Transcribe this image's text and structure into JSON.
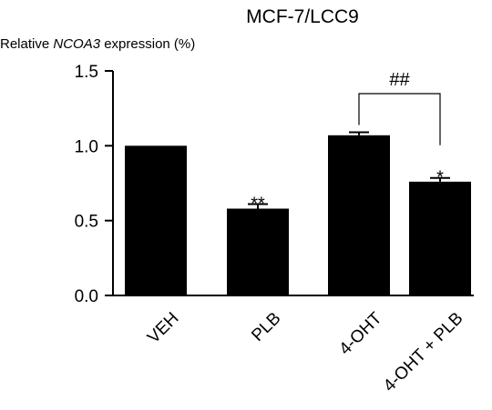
{
  "chart_data": {
    "type": "bar",
    "title": "MCF-7/LCC9",
    "ylabel_prefix": "Relative ",
    "ylabel_gene": "NCOA3",
    "ylabel_suffix": " expression (%)",
    "xlabel": "",
    "ylim": [
      0,
      1.5
    ],
    "yticks": [
      "0.0",
      "0.5",
      "1.0",
      "1.5"
    ],
    "ytick_values": [
      0,
      0.5,
      1.0,
      1.5
    ],
    "categories": [
      "VEH",
      "PLB",
      "4-OHT",
      "4-OHT + PLB"
    ],
    "values": [
      1.0,
      0.58,
      1.07,
      0.76
    ],
    "errors": [
      0,
      0.03,
      0.02,
      0.025
    ],
    "annotations": [
      "",
      "**",
      "",
      "*"
    ],
    "comparison": {
      "from": 2,
      "to": 3,
      "label": "##"
    },
    "bar_color": "#000000",
    "grid": false
  }
}
